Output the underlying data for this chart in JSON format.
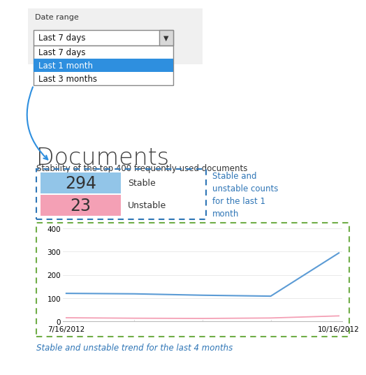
{
  "bg_color": "#ffffff",
  "date_range_label": "Date range",
  "dropdown_text": "Last 7 days",
  "dropdown_items": [
    "Last 7 days",
    "Last 1 month",
    "Last 3 months"
  ],
  "dropdown_selected": 1,
  "section_title": "Documents",
  "subtitle": "Stability of the top 400 frequently used documents",
  "stable_count": "294",
  "unstable_count": "23",
  "stable_label": "Stable",
  "unstable_label": "Unstable",
  "stable_color": "#92c5e8",
  "unstable_color": "#f4a0b5",
  "annotation_text": "Stable and\nunstable counts\nfor the last 1\nmonth",
  "annotation_color": "#2e75b6",
  "trend_label": "Stable and unstable trend for the last 4 months",
  "trend_label_color": "#2e75b6",
  "x_dates": [
    "7/16/2012",
    "10/16/2012"
  ],
  "stable_trend": [
    120,
    118,
    112,
    108,
    294
  ],
  "unstable_trend": [
    15,
    13,
    12,
    14,
    23
  ],
  "chart_ylim": [
    0,
    400
  ],
  "chart_yticks": [
    0,
    100,
    200,
    300,
    400
  ],
  "stable_line_color": "#5b9bd5",
  "unstable_line_color": "#f4a0b5",
  "dashed_blue_border": "#2e75b6",
  "dashed_green_border": "#70ad47",
  "dropdown_bg": "#f0f0f0",
  "selected_bg": "#2e8fdf"
}
